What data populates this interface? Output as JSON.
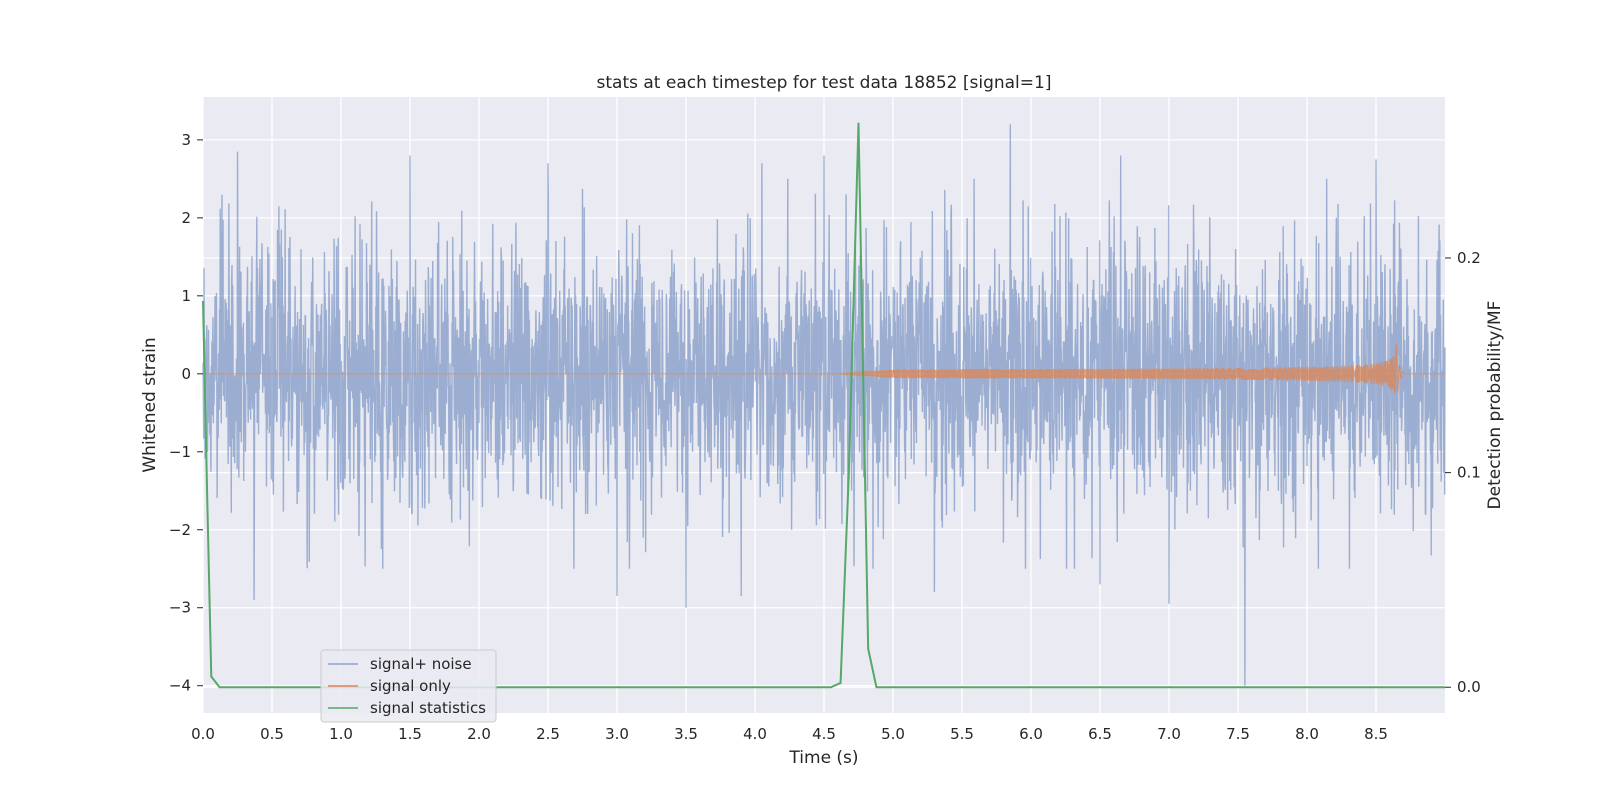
{
  "chart_data": {
    "type": "line",
    "title": "stats at each timestep for test data 18852 [signal=1]",
    "xlabel": "Time (s)",
    "ylabel": "Whitened strain",
    "y2label": "Detection probability/MF",
    "xlim": [
      0,
      9
    ],
    "ylim": [
      -4.35,
      3.55
    ],
    "y2lim": [
      -0.012,
      0.275
    ],
    "x_ticks": [
      "0.0",
      "0.5",
      "1.0",
      "1.5",
      "2.0",
      "2.5",
      "3.0",
      "3.5",
      "4.0",
      "4.5",
      "5.0",
      "5.5",
      "6.0",
      "6.5",
      "7.0",
      "7.5",
      "8.0",
      "8.5"
    ],
    "y_ticks": [
      "3",
      "2",
      "1",
      "0",
      "−1",
      "−2",
      "−3",
      "−4"
    ],
    "y2_ticks": [
      "0.2",
      "0.1",
      "0.0"
    ],
    "grid": true,
    "legend_position": "lower-left",
    "series": [
      {
        "name": "signal+ noise",
        "color": "#4c72b0",
        "axis": "left",
        "kind": "gaussian-noise",
        "x_start": 0.0,
        "x_end": 9.0,
        "std": 0.85,
        "peaks": [
          {
            "x": 0.25,
            "y": 2.85
          },
          {
            "x": 1.5,
            "y": 2.8
          },
          {
            "x": 2.5,
            "y": 2.7
          },
          {
            "x": 4.05,
            "y": 2.7
          },
          {
            "x": 4.5,
            "y": 2.8
          },
          {
            "x": 5.3,
            "y": 2.85
          },
          {
            "x": 5.85,
            "y": 3.2
          },
          {
            "x": 6.65,
            "y": 2.8
          },
          {
            "x": 8.5,
            "y": 2.75
          },
          {
            "x": 0.37,
            "y": -2.9
          },
          {
            "x": 3.0,
            "y": -2.85
          },
          {
            "x": 3.5,
            "y": -3.0
          },
          {
            "x": 3.9,
            "y": -2.85
          },
          {
            "x": 5.3,
            "y": -2.8
          },
          {
            "x": 6.5,
            "y": -2.7
          },
          {
            "x": 7.0,
            "y": -2.95
          },
          {
            "x": 7.55,
            "y": -4.0
          }
        ]
      },
      {
        "name": "signal only",
        "color": "#dd8452",
        "axis": "left",
        "kind": "chirp",
        "x_start": 4.6,
        "x_merge": 8.65,
        "amplitude_max": 0.38
      },
      {
        "name": "signal statistics",
        "color": "#55a868",
        "axis": "right",
        "x": [
          0.0,
          0.03,
          0.06,
          0.12,
          4.55,
          4.62,
          4.68,
          4.75,
          4.82,
          4.88,
          5.0,
          9.0
        ],
        "y": [
          0.18,
          0.09,
          0.005,
          0.0,
          0.0,
          0.002,
          0.1,
          0.263,
          0.018,
          0.0,
          0.0,
          0.0
        ]
      }
    ]
  }
}
